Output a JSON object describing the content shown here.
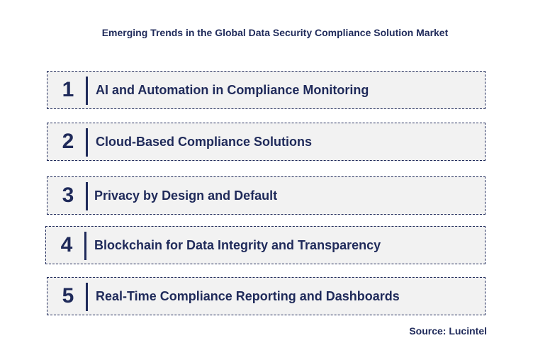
{
  "title": "Emerging Trends in the Global Data Security Compliance Solution Market",
  "trends": [
    {
      "number": "1",
      "label": "AI and Automation in Compliance Monitoring"
    },
    {
      "number": "2",
      "label": "Cloud-Based Compliance Solutions"
    },
    {
      "number": "3",
      "label": "Privacy by Design and Default"
    },
    {
      "number": "4",
      "label": "Blockchain for Data Integrity and Transparency"
    },
    {
      "number": "5",
      "label": "Real-Time Compliance Reporting and Dashboards"
    }
  ],
  "source": "Source: Lucintel",
  "colors": {
    "primary": "#1f2a5a",
    "box_fill": "#f2f2f2"
  }
}
